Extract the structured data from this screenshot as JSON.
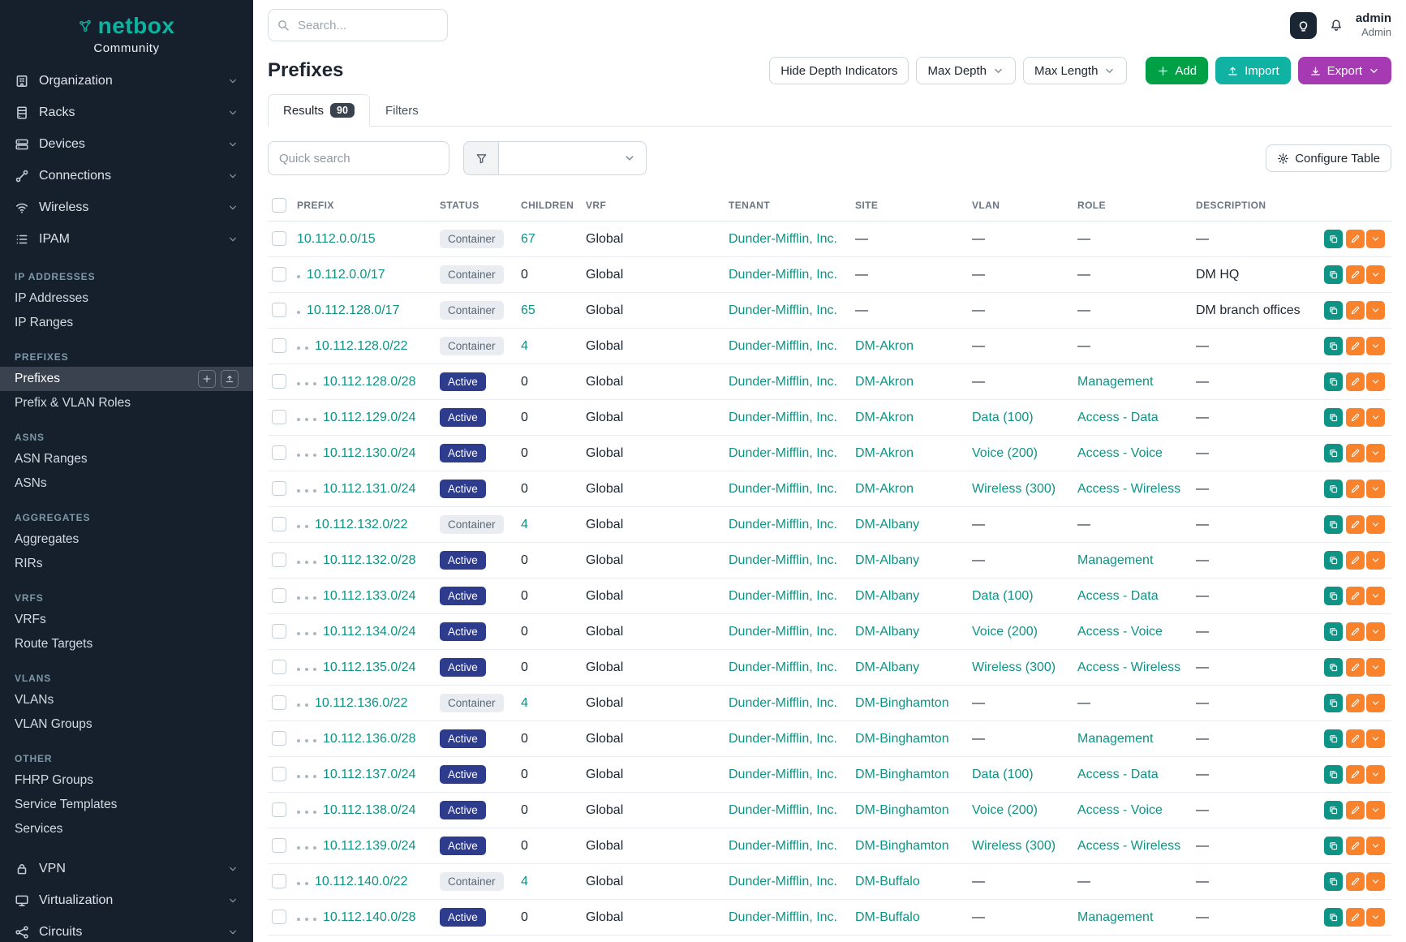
{
  "brand": {
    "name": "netbox",
    "subtitle": "Community"
  },
  "topbar": {
    "search_placeholder": "Search...",
    "user_name": "admin",
    "user_role": "Admin"
  },
  "sidebar": {
    "menu_top": [
      {
        "label": "Organization",
        "icon": "organization-icon"
      },
      {
        "label": "Racks",
        "icon": "racks-icon"
      },
      {
        "label": "Devices",
        "icon": "devices-icon"
      },
      {
        "label": "Connections",
        "icon": "connections-icon"
      },
      {
        "label": "Wireless",
        "icon": "wireless-icon"
      },
      {
        "label": "IPAM",
        "icon": "ipam-icon"
      }
    ],
    "sections": [
      {
        "header": "IP ADDRESSES",
        "links": [
          {
            "label": "IP Addresses"
          },
          {
            "label": "IP Ranges"
          }
        ]
      },
      {
        "header": "PREFIXES",
        "links": [
          {
            "label": "Prefixes",
            "active": true,
            "quick_actions": true
          },
          {
            "label": "Prefix & VLAN Roles"
          }
        ]
      },
      {
        "header": "ASNS",
        "links": [
          {
            "label": "ASN Ranges"
          },
          {
            "label": "ASNs"
          }
        ]
      },
      {
        "header": "AGGREGATES",
        "links": [
          {
            "label": "Aggregates"
          },
          {
            "label": "RIRs"
          }
        ]
      },
      {
        "header": "VRFS",
        "links": [
          {
            "label": "VRFs"
          },
          {
            "label": "Route Targets"
          }
        ]
      },
      {
        "header": "VLANS",
        "links": [
          {
            "label": "VLANs"
          },
          {
            "label": "VLAN Groups"
          }
        ]
      },
      {
        "header": "OTHER",
        "links": [
          {
            "label": "FHRP Groups"
          },
          {
            "label": "Service Templates"
          },
          {
            "label": "Services"
          }
        ]
      }
    ],
    "menu_bottom": [
      {
        "label": "VPN",
        "icon": "vpn-icon"
      },
      {
        "label": "Virtualization",
        "icon": "virtualization-icon"
      },
      {
        "label": "Circuits",
        "icon": "circuits-icon"
      }
    ]
  },
  "page": {
    "title": "Prefixes",
    "hide_depth_label": "Hide Depth Indicators",
    "max_depth_label": "Max Depth",
    "max_length_label": "Max Length",
    "add_label": "Add",
    "import_label": "Import",
    "export_label": "Export",
    "tabs": [
      {
        "label": "Results",
        "badge": "90"
      },
      {
        "label": "Filters"
      }
    ],
    "quick_search_placeholder": "Quick search",
    "configure_table_label": "Configure Table"
  },
  "table": {
    "columns": [
      "PREFIX",
      "STATUS",
      "CHILDREN",
      "VRF",
      "TENANT",
      "SITE",
      "VLAN",
      "ROLE",
      "DESCRIPTION"
    ],
    "rows": [
      {
        "depth": 0,
        "prefix": "10.112.0.0/15",
        "status": "Container",
        "children": "67",
        "vrf": "Global",
        "tenant": "Dunder-Mifflin, Inc.",
        "site": "—",
        "vlan": "—",
        "role": "—",
        "description": "—"
      },
      {
        "depth": 1,
        "prefix": "10.112.0.0/17",
        "status": "Container",
        "children": "0",
        "vrf": "Global",
        "tenant": "Dunder-Mifflin, Inc.",
        "site": "—",
        "vlan": "—",
        "role": "—",
        "description": "DM HQ"
      },
      {
        "depth": 1,
        "prefix": "10.112.128.0/17",
        "status": "Container",
        "children": "65",
        "vrf": "Global",
        "tenant": "Dunder-Mifflin, Inc.",
        "site": "—",
        "vlan": "—",
        "role": "—",
        "description": "DM branch offices"
      },
      {
        "depth": 2,
        "prefix": "10.112.128.0/22",
        "status": "Container",
        "children": "4",
        "vrf": "Global",
        "tenant": "Dunder-Mifflin, Inc.",
        "site": "DM-Akron",
        "vlan": "—",
        "role": "—",
        "description": "—"
      },
      {
        "depth": 3,
        "prefix": "10.112.128.0/28",
        "status": "Active",
        "children": "0",
        "vrf": "Global",
        "tenant": "Dunder-Mifflin, Inc.",
        "site": "DM-Akron",
        "vlan": "—",
        "role": "Management",
        "description": "—"
      },
      {
        "depth": 3,
        "prefix": "10.112.129.0/24",
        "status": "Active",
        "children": "0",
        "vrf": "Global",
        "tenant": "Dunder-Mifflin, Inc.",
        "site": "DM-Akron",
        "vlan": "Data (100)",
        "role": "Access - Data",
        "description": "—"
      },
      {
        "depth": 3,
        "prefix": "10.112.130.0/24",
        "status": "Active",
        "children": "0",
        "vrf": "Global",
        "tenant": "Dunder-Mifflin, Inc.",
        "site": "DM-Akron",
        "vlan": "Voice (200)",
        "role": "Access - Voice",
        "description": "—"
      },
      {
        "depth": 3,
        "prefix": "10.112.131.0/24",
        "status": "Active",
        "children": "0",
        "vrf": "Global",
        "tenant": "Dunder-Mifflin, Inc.",
        "site": "DM-Akron",
        "vlan": "Wireless (300)",
        "role": "Access - Wireless",
        "description": "—"
      },
      {
        "depth": 2,
        "prefix": "10.112.132.0/22",
        "status": "Container",
        "children": "4",
        "vrf": "Global",
        "tenant": "Dunder-Mifflin, Inc.",
        "site": "DM-Albany",
        "vlan": "—",
        "role": "—",
        "description": "—"
      },
      {
        "depth": 3,
        "prefix": "10.112.132.0/28",
        "status": "Active",
        "children": "0",
        "vrf": "Global",
        "tenant": "Dunder-Mifflin, Inc.",
        "site": "DM-Albany",
        "vlan": "—",
        "role": "Management",
        "description": "—"
      },
      {
        "depth": 3,
        "prefix": "10.112.133.0/24",
        "status": "Active",
        "children": "0",
        "vrf": "Global",
        "tenant": "Dunder-Mifflin, Inc.",
        "site": "DM-Albany",
        "vlan": "Data (100)",
        "role": "Access - Data",
        "description": "—"
      },
      {
        "depth": 3,
        "prefix": "10.112.134.0/24",
        "status": "Active",
        "children": "0",
        "vrf": "Global",
        "tenant": "Dunder-Mifflin, Inc.",
        "site": "DM-Albany",
        "vlan": "Voice (200)",
        "role": "Access - Voice",
        "description": "—"
      },
      {
        "depth": 3,
        "prefix": "10.112.135.0/24",
        "status": "Active",
        "children": "0",
        "vrf": "Global",
        "tenant": "Dunder-Mifflin, Inc.",
        "site": "DM-Albany",
        "vlan": "Wireless (300)",
        "role": "Access - Wireless",
        "description": "—"
      },
      {
        "depth": 2,
        "prefix": "10.112.136.0/22",
        "status": "Container",
        "children": "4",
        "vrf": "Global",
        "tenant": "Dunder-Mifflin, Inc.",
        "site": "DM-Binghamton",
        "vlan": "—",
        "role": "—",
        "description": "—"
      },
      {
        "depth": 3,
        "prefix": "10.112.136.0/28",
        "status": "Active",
        "children": "0",
        "vrf": "Global",
        "tenant": "Dunder-Mifflin, Inc.",
        "site": "DM-Binghamton",
        "vlan": "—",
        "role": "Management",
        "description": "—"
      },
      {
        "depth": 3,
        "prefix": "10.112.137.0/24",
        "status": "Active",
        "children": "0",
        "vrf": "Global",
        "tenant": "Dunder-Mifflin, Inc.",
        "site": "DM-Binghamton",
        "vlan": "Data (100)",
        "role": "Access - Data",
        "description": "—"
      },
      {
        "depth": 3,
        "prefix": "10.112.138.0/24",
        "status": "Active",
        "children": "0",
        "vrf": "Global",
        "tenant": "Dunder-Mifflin, Inc.",
        "site": "DM-Binghamton",
        "vlan": "Voice (200)",
        "role": "Access - Voice",
        "description": "—"
      },
      {
        "depth": 3,
        "prefix": "10.112.139.0/24",
        "status": "Active",
        "children": "0",
        "vrf": "Global",
        "tenant": "Dunder-Mifflin, Inc.",
        "site": "DM-Binghamton",
        "vlan": "Wireless (300)",
        "role": "Access - Wireless",
        "description": "—"
      },
      {
        "depth": 2,
        "prefix": "10.112.140.0/22",
        "status": "Container",
        "children": "4",
        "vrf": "Global",
        "tenant": "Dunder-Mifflin, Inc.",
        "site": "DM-Buffalo",
        "vlan": "—",
        "role": "—",
        "description": "—"
      },
      {
        "depth": 3,
        "prefix": "10.112.140.0/28",
        "status": "Active",
        "children": "0",
        "vrf": "Global",
        "tenant": "Dunder-Mifflin, Inc.",
        "site": "DM-Buffalo",
        "vlan": "—",
        "role": "Management",
        "description": "—"
      }
    ]
  },
  "colors": {
    "sidebar_bg": "#161f2c",
    "sidebar_active": "#39424e",
    "brand_teal": "#0cb4a0",
    "link_teal": "#0e9384",
    "add_green": "#00a047",
    "import_teal": "#10b3a3",
    "export_purple": "#a63ab3",
    "edit_orange": "#f9822a",
    "active_badge_blue": "#2e3c8e",
    "container_badge_bg": "#e9edf1"
  }
}
